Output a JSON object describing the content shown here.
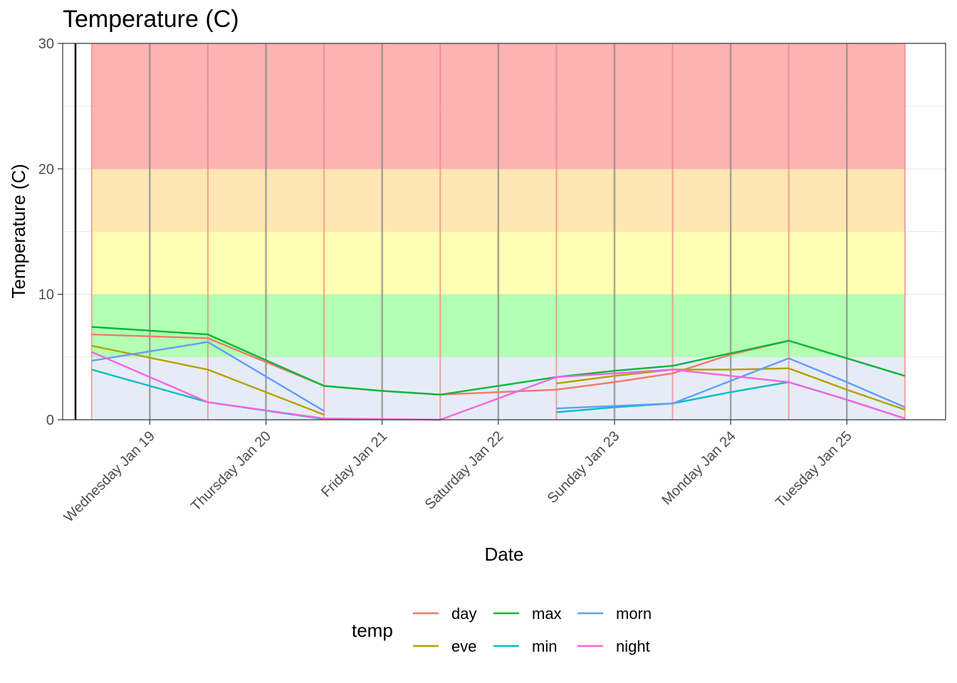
{
  "chart_data": {
    "type": "line",
    "title": "Temperature (C)",
    "xlabel": "Date",
    "ylabel": "Temperature (C)",
    "ylim": [
      0,
      30
    ],
    "yticks": [
      0,
      10,
      20,
      30
    ],
    "x_ticks": [
      {
        "x": 1,
        "label": "Wednesday Jan 19"
      },
      {
        "x": 2,
        "label": "Thursday Jan 20"
      },
      {
        "x": 3,
        "label": "Friday Jan 21"
      },
      {
        "x": 4,
        "label": "Saturday Jan 22"
      },
      {
        "x": 5,
        "label": "Sunday Jan 23"
      },
      {
        "x": 6,
        "label": "Monday Jan 24"
      },
      {
        "x": 7,
        "label": "Tuesday Jan 25"
      }
    ],
    "xlim": [
      0.25,
      7.85
    ],
    "bands": [
      {
        "from": 0,
        "to": 5,
        "color": "#dde6f2"
      },
      {
        "from": 5,
        "to": 10,
        "color": "#99ff99"
      },
      {
        "from": 10,
        "to": 15,
        "color": "#ffff99"
      },
      {
        "from": 15,
        "to": 20,
        "color": "#ffdd99"
      },
      {
        "from": 20,
        "to": 30,
        "color": "#ff9999"
      }
    ],
    "band_xrange": [
      0.5,
      7.5
    ],
    "day_boundaries": [
      0.5,
      1.5,
      2.5,
      3.5,
      4.5,
      5.5,
      6.5,
      7.5
    ],
    "boundary_color": "#f08080",
    "noon_lines": [
      1,
      2,
      3,
      4,
      5,
      6,
      7
    ],
    "noon_color": "#8a8a8a",
    "grid": true,
    "legend_position": "bottom",
    "legend_title": "temp",
    "series": [
      {
        "name": "day",
        "color": "#F8766D",
        "segments": [
          {
            "x": [
              0.5,
              1.5,
              2.5,
              3.0,
              3.5,
              4.0,
              4.5
            ],
            "y": [
              6.8,
              6.5,
              2.7,
              2.3,
              2.0,
              2.2,
              2.4
            ]
          },
          {
            "x": [
              4.5,
              5.0,
              5.5,
              6.0,
              6.5,
              7.0,
              7.5
            ],
            "y": [
              2.4,
              3.0,
              3.7,
              5.2,
              6.3,
              4.9,
              3.5
            ]
          }
        ]
      },
      {
        "name": "eve",
        "color": "#B79F00",
        "segments": [
          {
            "x": [
              0.5,
              1.5,
              2.5
            ],
            "y": [
              5.9,
              4.0,
              0.4
            ]
          },
          {
            "x": [
              4.5,
              5.0,
              5.5,
              6.0,
              6.5,
              7.0,
              7.5
            ],
            "y": [
              2.9,
              3.5,
              4.0,
              4.0,
              4.1,
              2.4,
              0.8
            ]
          }
        ]
      },
      {
        "name": "max",
        "color": "#00BA38",
        "segments": [
          {
            "x": [
              0.5,
              1.5,
              2.5,
              3.0,
              3.5,
              4.0,
              4.5,
              5.0,
              5.5,
              6.0,
              6.5,
              7.0,
              7.5
            ],
            "y": [
              7.4,
              6.8,
              2.7,
              2.3,
              2.0,
              2.7,
              3.4,
              3.9,
              4.3,
              5.3,
              6.3,
              4.9,
              3.5
            ]
          }
        ]
      },
      {
        "name": "min",
        "color": "#00BFC4",
        "segments": [
          {
            "x": [
              0.5,
              1.5,
              2.5
            ],
            "y": [
              4.0,
              1.4,
              0.05
            ]
          },
          {
            "x": [
              4.5,
              5.0,
              5.5,
              6.0,
              6.5,
              7.0,
              7.5
            ],
            "y": [
              0.6,
              1.0,
              1.3,
              2.2,
              3.0,
              1.6,
              0.1
            ]
          }
        ]
      },
      {
        "name": "morn",
        "color": "#619CFF",
        "segments": [
          {
            "x": [
              0.5,
              1.5,
              2.5
            ],
            "y": [
              4.7,
              6.2,
              0.7
            ]
          },
          {
            "x": [
              4.5,
              5.0,
              5.5,
              6.0,
              6.5,
              7.0,
              7.5
            ],
            "y": [
              0.9,
              1.1,
              1.3,
              3.1,
              4.9,
              3.0,
              1.0
            ]
          }
        ]
      },
      {
        "name": "night",
        "color": "#F564E3",
        "segments": [
          {
            "x": [
              0.5,
              1.5,
              2.5,
              3.0,
              3.5,
              4.0,
              4.5,
              5.0,
              5.5,
              6.0,
              6.5,
              7.0,
              7.5
            ],
            "y": [
              5.4,
              1.4,
              0.1,
              0.05,
              0.0,
              1.7,
              3.4,
              3.7,
              4.0,
              3.5,
              3.0,
              1.6,
              0.1
            ]
          }
        ]
      }
    ]
  }
}
